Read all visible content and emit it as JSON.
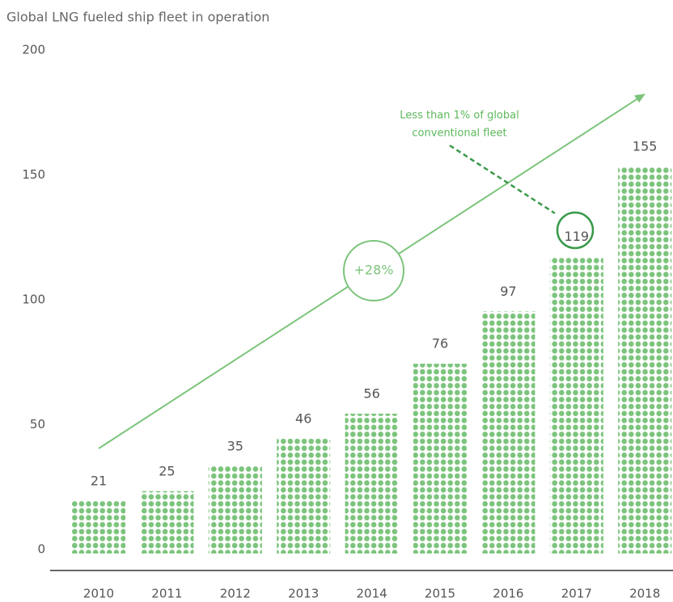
{
  "chart_data": {
    "type": "bar",
    "title": "Global LNG fueled ship fleet in operation",
    "categories": [
      "2010",
      "2011",
      "2012",
      "2013",
      "2014",
      "2015",
      "2016",
      "2017",
      "2018"
    ],
    "values": [
      21,
      25,
      35,
      46,
      56,
      76,
      97,
      119,
      155
    ],
    "color": "#7cc47c",
    "ylim": [
      0,
      200
    ],
    "yticks": [
      0,
      50,
      100,
      150,
      200
    ],
    "growth_label": "+28%",
    "annotation": [
      "Less than 1% of global",
      "conventional fleet"
    ]
  }
}
